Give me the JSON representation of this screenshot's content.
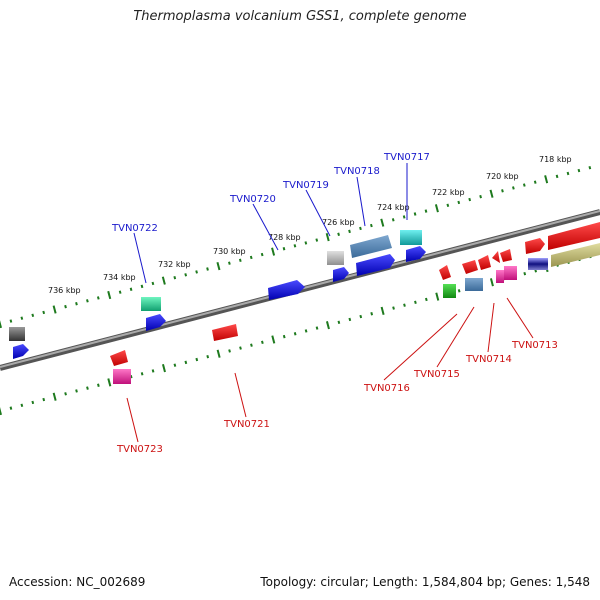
{
  "title": "Thermoplasma volcanium GSS1, complete genome",
  "footer": {
    "accession": "Accession: NC_002689",
    "summary": "Topology: circular; Length: 1,584,804 bp; Genes: 1,548"
  },
  "scale_labels": [
    "718 kbp",
    "720 kbp",
    "722 kbp",
    "724 kbp",
    "726 kbp",
    "728 kbp",
    "730 kbp",
    "732 kbp",
    "734 kbp",
    "736 kbp"
  ],
  "forward_gene_labels": [
    "TVN0717",
    "TVN0718",
    "TVN0719",
    "TVN0720",
    "TVN0722"
  ],
  "reverse_gene_labels": [
    "TVN0713",
    "TVN0714",
    "TVN0715",
    "TVN0716",
    "TVN0721",
    "TVN0723"
  ],
  "colors": {
    "forward_label": "#1a1acc",
    "reverse_label": "#cc1111",
    "backbone": "#888888",
    "tick": "#1e7a1e"
  }
}
